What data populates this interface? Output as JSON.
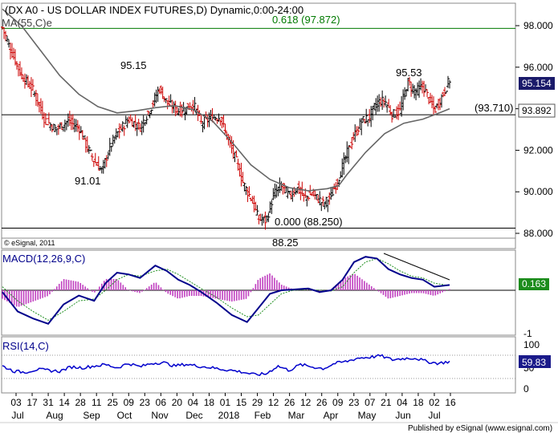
{
  "chart_data": {
    "type": "ohlc",
    "title": "(DX A0 - US DOLLAR INDEX FUTURES,D) Dynamic,0:00-24:00",
    "ma_label": "MA(55,C)e",
    "last_price": "95.154",
    "ma_value": "93.892",
    "y_ticks": [
      "98.000",
      "96.000",
      "94.000",
      "92.000",
      "90.000",
      "88.000"
    ],
    "ylim": [
      87.7,
      98.8
    ],
    "annotations": {
      "fib_618": "0.618 (97.872)",
      "fib_000": "0.000 (88.250)",
      "level_93710": "(93.710)",
      "high_1": "95.15",
      "low_1": "91.01",
      "high_2": "95.53",
      "low_2": "88.25"
    },
    "levels": {
      "fib_618": 97.872,
      "fib_000": 88.25,
      "support": 93.71
    },
    "copyright": "© eSignal, 2011",
    "x_dates": [
      "03",
      "17",
      "31",
      "14",
      "28",
      "11",
      "25",
      "09",
      "23",
      "06",
      "20",
      "04",
      "18",
      "01",
      "15",
      "29",
      "12",
      "26",
      "12",
      "26",
      "09",
      "23",
      "07",
      "21",
      "04",
      "18",
      "02",
      "16"
    ],
    "x_months": [
      "Jul",
      "Aug",
      "Sep",
      "Oct",
      "Nov",
      "Dec",
      "2018",
      "Feb",
      "Mar",
      "Apr",
      "May",
      "Jun",
      "Jul"
    ],
    "price_path": [
      [
        0,
        97.9
      ],
      [
        2,
        96.9
      ],
      [
        5,
        95.6
      ],
      [
        8,
        94.9
      ],
      [
        11,
        93.5
      ],
      [
        14,
        93.0
      ],
      [
        17,
        93.4
      ],
      [
        20,
        93.1
      ],
      [
        22,
        92.2
      ],
      [
        24,
        91.5
      ],
      [
        26,
        91.0
      ],
      [
        28,
        92.1
      ],
      [
        30,
        92.8
      ],
      [
        33,
        93.5
      ],
      [
        36,
        93.1
      ],
      [
        39,
        94.1
      ],
      [
        41,
        95.0
      ],
      [
        43,
        94.3
      ],
      [
        46,
        93.9
      ],
      [
        48,
        94.0
      ],
      [
        50,
        94.2
      ],
      [
        52,
        93.3
      ],
      [
        55,
        93.6
      ],
      [
        57,
        93.6
      ],
      [
        59,
        92.5
      ],
      [
        61,
        91.6
      ],
      [
        63,
        90.4
      ],
      [
        65,
        89.7
      ],
      [
        67,
        88.7
      ],
      [
        69,
        88.6
      ],
      [
        71,
        89.9
      ],
      [
        73,
        90.3
      ],
      [
        75,
        89.8
      ],
      [
        77,
        90.2
      ],
      [
        79,
        89.7
      ],
      [
        81,
        89.9
      ],
      [
        83,
        89.6
      ],
      [
        84,
        89.4
      ],
      [
        86,
        89.8
      ],
      [
        88,
        90.7
      ],
      [
        90,
        91.8
      ],
      [
        92,
        92.7
      ],
      [
        94,
        93.4
      ],
      [
        96,
        93.6
      ],
      [
        98,
        94.3
      ],
      [
        100,
        94.4
      ],
      [
        102,
        93.7
      ],
      [
        104,
        93.9
      ],
      [
        106,
        95.3
      ],
      [
        108,
        94.8
      ],
      [
        110,
        95.1
      ],
      [
        112,
        94.3
      ],
      [
        113,
        93.9
      ],
      [
        115,
        94.6
      ],
      [
        117,
        95.4
      ]
    ],
    "ma_path": [
      [
        0,
        98.8
      ],
      [
        5,
        98.0
      ],
      [
        10,
        96.8
      ],
      [
        15,
        95.6
      ],
      [
        20,
        94.7
      ],
      [
        25,
        94.1
      ],
      [
        30,
        93.8
      ],
      [
        35,
        93.9
      ],
      [
        40,
        94.05
      ],
      [
        45,
        94.15
      ],
      [
        50,
        93.95
      ],
      [
        55,
        93.4
      ],
      [
        60,
        92.4
      ],
      [
        65,
        91.3
      ],
      [
        70,
        90.6
      ],
      [
        75,
        90.2
      ],
      [
        80,
        90.05
      ],
      [
        85,
        90.15
      ],
      [
        88,
        90.3
      ],
      [
        90,
        90.8
      ],
      [
        95,
        91.9
      ],
      [
        100,
        92.8
      ],
      [
        105,
        93.3
      ],
      [
        110,
        93.5
      ],
      [
        115,
        93.85
      ],
      [
        117,
        94.0
      ]
    ],
    "macd": {
      "title": "MACD(12,26,9,C)",
      "value": "0.163",
      "tick_bottom": "-1",
      "ylim": [
        -1.1,
        1.1
      ],
      "macd_path": [
        [
          0,
          -0.05
        ],
        [
          4,
          -0.6
        ],
        [
          8,
          -0.8
        ],
        [
          12,
          -0.95
        ],
        [
          16,
          -0.4
        ],
        [
          20,
          -0.15
        ],
        [
          24,
          -0.3
        ],
        [
          27,
          0.2
        ],
        [
          30,
          0.5
        ],
        [
          33,
          0.45
        ],
        [
          36,
          0.35
        ],
        [
          40,
          0.7
        ],
        [
          43,
          0.55
        ],
        [
          46,
          0.3
        ],
        [
          49,
          0.15
        ],
        [
          52,
          -0.05
        ],
        [
          56,
          -0.35
        ],
        [
          60,
          -0.7
        ],
        [
          64,
          -0.9
        ],
        [
          67,
          -0.5
        ],
        [
          70,
          -0.1
        ],
        [
          73,
          0.0
        ],
        [
          76,
          0.02
        ],
        [
          80,
          0.05
        ],
        [
          83,
          -0.05
        ],
        [
          86,
          0.0
        ],
        [
          89,
          0.3
        ],
        [
          92,
          0.8
        ],
        [
          95,
          0.95
        ],
        [
          98,
          0.9
        ],
        [
          101,
          0.6
        ],
        [
          104,
          0.45
        ],
        [
          107,
          0.35
        ],
        [
          110,
          0.3
        ],
        [
          113,
          0.1
        ],
        [
          117,
          0.15
        ]
      ],
      "signal_path": [
        [
          0,
          0.1
        ],
        [
          4,
          -0.3
        ],
        [
          8,
          -0.6
        ],
        [
          12,
          -0.85
        ],
        [
          16,
          -0.6
        ],
        [
          20,
          -0.3
        ],
        [
          24,
          -0.25
        ],
        [
          27,
          0.0
        ],
        [
          30,
          0.3
        ],
        [
          33,
          0.45
        ],
        [
          36,
          0.4
        ],
        [
          40,
          0.55
        ],
        [
          43,
          0.6
        ],
        [
          46,
          0.45
        ],
        [
          49,
          0.25
        ],
        [
          52,
          0.05
        ],
        [
          56,
          -0.2
        ],
        [
          60,
          -0.5
        ],
        [
          64,
          -0.75
        ],
        [
          67,
          -0.7
        ],
        [
          70,
          -0.4
        ],
        [
          73,
          -0.1
        ],
        [
          76,
          0.0
        ],
        [
          80,
          0.02
        ],
        [
          83,
          0.0
        ],
        [
          86,
          -0.02
        ],
        [
          89,
          0.1
        ],
        [
          92,
          0.5
        ],
        [
          95,
          0.8
        ],
        [
          98,
          0.9
        ],
        [
          101,
          0.75
        ],
        [
          104,
          0.55
        ],
        [
          107,
          0.4
        ],
        [
          110,
          0.35
        ],
        [
          113,
          0.2
        ],
        [
          117,
          0.13
        ]
      ]
    },
    "rsi": {
      "title": "RSI(14,C)",
      "value": "59.83",
      "ticks": [
        "100",
        "50",
        "0"
      ],
      "ylim": [
        0,
        100
      ],
      "path": [
        [
          0,
          52
        ],
        [
          3,
          40
        ],
        [
          6,
          38
        ],
        [
          9,
          44
        ],
        [
          12,
          42
        ],
        [
          15,
          40
        ],
        [
          18,
          50
        ],
        [
          21,
          48
        ],
        [
          24,
          52
        ],
        [
          27,
          55
        ],
        [
          30,
          48
        ],
        [
          33,
          58
        ],
        [
          36,
          50
        ],
        [
          39,
          58
        ],
        [
          42,
          60
        ],
        [
          45,
          52
        ],
        [
          48,
          56
        ],
        [
          51,
          52
        ],
        [
          54,
          49
        ],
        [
          57,
          45
        ],
        [
          60,
          42
        ],
        [
          63,
          38
        ],
        [
          66,
          32
        ],
        [
          69,
          34
        ],
        [
          72,
          52
        ],
        [
          75,
          42
        ],
        [
          78,
          55
        ],
        [
          81,
          50
        ],
        [
          84,
          46
        ],
        [
          87,
          58
        ],
        [
          90,
          62
        ],
        [
          93,
          70
        ],
        [
          96,
          72
        ],
        [
          99,
          75
        ],
        [
          102,
          66
        ],
        [
          105,
          69
        ],
        [
          108,
          70
        ],
        [
          111,
          62
        ],
        [
          114,
          58
        ],
        [
          117,
          62
        ]
      ]
    }
  },
  "footer": {
    "credit": "Published by eSignal (www.esignal.com)"
  },
  "colors": {
    "fib_line": "#007a00",
    "macd_line": "#00008b",
    "signal_line": "#1f8f1f",
    "histogram": "#c040c0",
    "ma_line": "#666666",
    "bear": "#cc0000",
    "bull": "#000000",
    "trend_line": "#000000",
    "last_price_box": "#1a1a6a",
    "macd_box": "#1c8c1c"
  }
}
